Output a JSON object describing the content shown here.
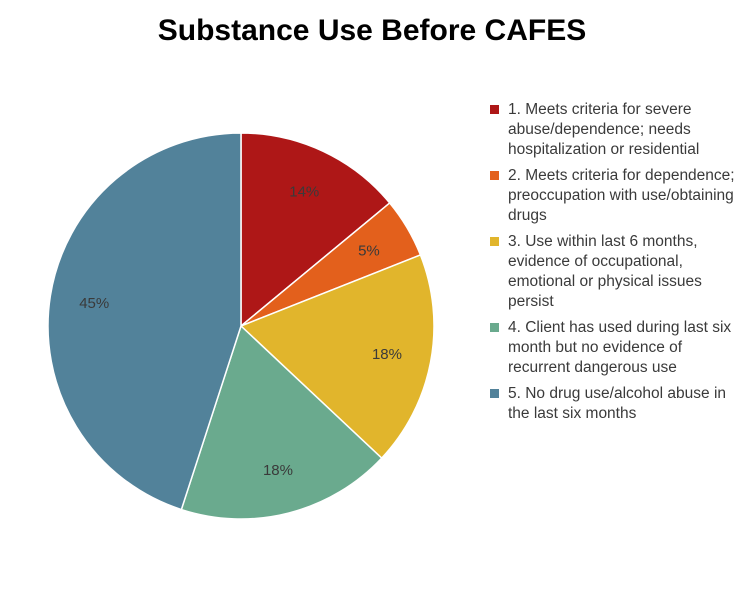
{
  "chart_data": {
    "type": "pie",
    "title": "Substance Use Before CAFES",
    "categories": [
      "1. Meets criteria for severe abuse/dependence; needs hospitalization or residential",
      "2. Meets criteria for dependence; preoccupation with use/obtaining drugs",
      "3. Use within last 6 months, evidence of occupational, emotional or physical issues persist",
      "4. Client has used during last six month but no evidence of recurrent dangerous use",
      "5. No drug use/alcohol abuse in the last six months"
    ],
    "values": [
      14,
      5,
      18,
      18,
      45
    ],
    "data_labels": [
      "14%",
      "5%",
      "18%",
      "18%",
      "45%"
    ],
    "colors": [
      "#AE1717",
      "#E3601C",
      "#E1B52C",
      "#6AAA8E",
      "#52829A"
    ],
    "legend_position": "right"
  }
}
